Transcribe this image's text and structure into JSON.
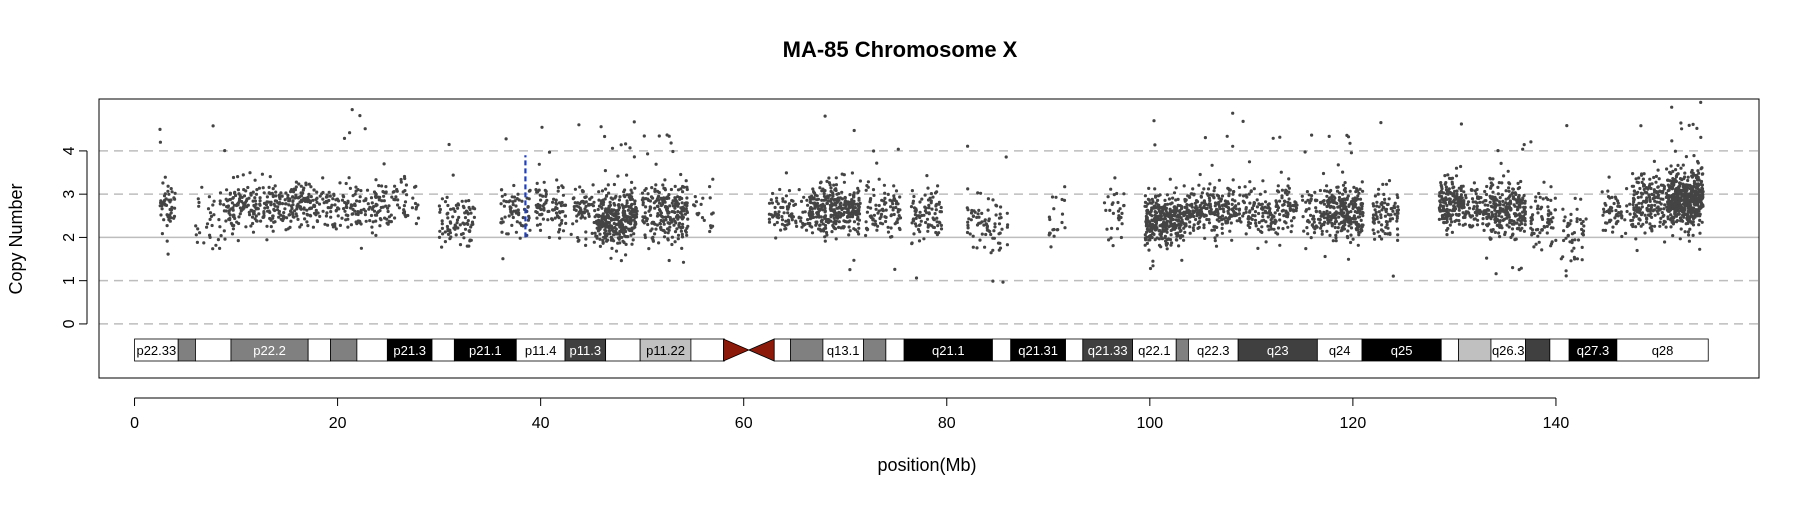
{
  "chart_data": {
    "type": "scatter",
    "title": "MA-85  Chromosome X",
    "xlabel": "position(Mb)",
    "ylabel": "Copy Number",
    "xlim": [
      -3.5,
      160
    ],
    "ylim": [
      -1.25,
      5.2
    ],
    "x_ticks": [
      "0",
      "20",
      "40",
      "60",
      "80",
      "100",
      "120",
      "140"
    ],
    "y_ticks": [
      "0",
      "1",
      "2",
      "3",
      "4"
    ],
    "dashed_gridlines_y": [
      0,
      1,
      3,
      4
    ],
    "solid_gridline_y": 2,
    "point_color": "#444444",
    "highlight_color": "#1f3fbf",
    "highlight_segment": {
      "x": 38.5,
      "y_from": 2.0,
      "y_to": 3.9
    },
    "centromere": {
      "from": 58.0,
      "to": 63.0,
      "color": "#8b1a0a"
    },
    "point_clusters": [
      {
        "from": 2.5,
        "to": 4.0,
        "n": 50,
        "center": 2.7,
        "spread": 0.55
      },
      {
        "from": 6.0,
        "to": 9.0,
        "n": 40,
        "center": 2.5,
        "spread": 0.6
      },
      {
        "from": 9.0,
        "to": 19.0,
        "n": 330,
        "center": 2.75,
        "spread": 0.55
      },
      {
        "from": 19.0,
        "to": 24.5,
        "n": 140,
        "center": 2.7,
        "spread": 0.55
      },
      {
        "from": 24.5,
        "to": 28.0,
        "n": 60,
        "center": 2.8,
        "spread": 0.5
      },
      {
        "from": 30.0,
        "to": 33.5,
        "n": 90,
        "center": 2.4,
        "spread": 0.55
      },
      {
        "from": 36.0,
        "to": 39.0,
        "n": 70,
        "center": 2.6,
        "spread": 0.6
      },
      {
        "from": 39.5,
        "to": 42.5,
        "n": 90,
        "center": 2.75,
        "spread": 0.55
      },
      {
        "from": 43.0,
        "to": 45.5,
        "n": 70,
        "center": 2.6,
        "spread": 0.6
      },
      {
        "from": 45.5,
        "to": 49.5,
        "n": 330,
        "center": 2.45,
        "spread": 0.6
      },
      {
        "from": 50.0,
        "to": 54.5,
        "n": 240,
        "center": 2.6,
        "spread": 0.6
      },
      {
        "from": 55.0,
        "to": 57.0,
        "n": 20,
        "center": 2.6,
        "spread": 0.6
      },
      {
        "from": 62.5,
        "to": 66.5,
        "n": 90,
        "center": 2.6,
        "spread": 0.5
      },
      {
        "from": 66.5,
        "to": 71.5,
        "n": 330,
        "center": 2.65,
        "spread": 0.55
      },
      {
        "from": 72.0,
        "to": 75.5,
        "n": 100,
        "center": 2.6,
        "spread": 0.5
      },
      {
        "from": 76.5,
        "to": 79.5,
        "n": 90,
        "center": 2.5,
        "spread": 0.55
      },
      {
        "from": 82.0,
        "to": 86.0,
        "n": 80,
        "center": 2.3,
        "spread": 0.6
      },
      {
        "from": 90.0,
        "to": 92.0,
        "n": 20,
        "center": 2.4,
        "spread": 0.6
      },
      {
        "from": 95.5,
        "to": 97.5,
        "n": 30,
        "center": 2.5,
        "spread": 0.6
      },
      {
        "from": 99.5,
        "to": 103.5,
        "n": 320,
        "center": 2.4,
        "spread": 0.5
      },
      {
        "from": 103.5,
        "to": 108.5,
        "n": 230,
        "center": 2.7,
        "spread": 0.55
      },
      {
        "from": 108.5,
        "to": 114.5,
        "n": 190,
        "center": 2.6,
        "spread": 0.55
      },
      {
        "from": 115.0,
        "to": 117.5,
        "n": 80,
        "center": 2.6,
        "spread": 0.5
      },
      {
        "from": 117.5,
        "to": 121.0,
        "n": 250,
        "center": 2.6,
        "spread": 0.55
      },
      {
        "from": 122.0,
        "to": 124.5,
        "n": 90,
        "center": 2.5,
        "spread": 0.55
      },
      {
        "from": 128.5,
        "to": 131.0,
        "n": 180,
        "center": 2.8,
        "spread": 0.55
      },
      {
        "from": 131.0,
        "to": 133.5,
        "n": 90,
        "center": 2.7,
        "spread": 0.5
      },
      {
        "from": 133.5,
        "to": 137.0,
        "n": 230,
        "center": 2.6,
        "spread": 0.55
      },
      {
        "from": 137.5,
        "to": 140.0,
        "n": 70,
        "center": 2.4,
        "spread": 0.6
      },
      {
        "from": 140.5,
        "to": 143.0,
        "n": 50,
        "center": 2.2,
        "spread": 0.6
      },
      {
        "from": 144.5,
        "to": 147.5,
        "n": 60,
        "center": 2.6,
        "spread": 0.55
      },
      {
        "from": 147.5,
        "to": 151.0,
        "n": 180,
        "center": 2.8,
        "spread": 0.6
      },
      {
        "from": 151.0,
        "to": 154.5,
        "n": 500,
        "center": 2.9,
        "spread": 0.6
      }
    ],
    "ideogram_bands": [
      {
        "label": "p22.33",
        "from": 0.0,
        "to": 4.3,
        "fill": "#ffffff",
        "text": "#000000"
      },
      {
        "label": "",
        "from": 4.3,
        "to": 6.0,
        "fill": "#808080",
        "text": "#000000"
      },
      {
        "label": "",
        "from": 6.0,
        "to": 9.5,
        "fill": "#ffffff",
        "text": "#000000"
      },
      {
        "label": "p22.2",
        "from": 9.5,
        "to": 17.1,
        "fill": "#808080",
        "text": "#ffffff"
      },
      {
        "label": "",
        "from": 17.1,
        "to": 19.3,
        "fill": "#ffffff",
        "text": "#000000"
      },
      {
        "label": "",
        "from": 19.3,
        "to": 21.9,
        "fill": "#808080",
        "text": "#000000"
      },
      {
        "label": "",
        "from": 21.9,
        "to": 24.9,
        "fill": "#ffffff",
        "text": "#000000"
      },
      {
        "label": "p21.3",
        "from": 24.9,
        "to": 29.3,
        "fill": "#000000",
        "text": "#ffffff"
      },
      {
        "label": "",
        "from": 29.3,
        "to": 31.5,
        "fill": "#ffffff",
        "text": "#000000"
      },
      {
        "label": "p21.1",
        "from": 31.5,
        "to": 37.6,
        "fill": "#000000",
        "text": "#ffffff"
      },
      {
        "label": "p11.4",
        "from": 37.6,
        "to": 42.4,
        "fill": "#ffffff",
        "text": "#000000"
      },
      {
        "label": "p11.3",
        "from": 42.4,
        "to": 46.4,
        "fill": "#404040",
        "text": "#ffffff"
      },
      {
        "label": "",
        "from": 46.4,
        "to": 49.8,
        "fill": "#ffffff",
        "text": "#000000"
      },
      {
        "label": "p11.22",
        "from": 49.8,
        "to": 54.8,
        "fill": "#c0c0c0",
        "text": "#000000"
      },
      {
        "label": "",
        "from": 54.8,
        "to": 58.1,
        "fill": "#ffffff",
        "text": "#000000"
      },
      {
        "label": "",
        "from": 63.0,
        "to": 64.6,
        "fill": "#ffffff",
        "text": "#000000"
      },
      {
        "label": "",
        "from": 64.6,
        "to": 67.8,
        "fill": "#808080",
        "text": "#000000"
      },
      {
        "label": "q13.1",
        "from": 67.8,
        "to": 71.8,
        "fill": "#ffffff",
        "text": "#000000"
      },
      {
        "label": "",
        "from": 71.8,
        "to": 74.0,
        "fill": "#808080",
        "text": "#000000"
      },
      {
        "label": "",
        "from": 74.0,
        "to": 75.8,
        "fill": "#ffffff",
        "text": "#000000"
      },
      {
        "label": "q21.1",
        "from": 75.8,
        "to": 84.5,
        "fill": "#000000",
        "text": "#ffffff"
      },
      {
        "label": "",
        "from": 84.5,
        "to": 86.3,
        "fill": "#ffffff",
        "text": "#000000"
      },
      {
        "label": "q21.31",
        "from": 86.3,
        "to": 91.7,
        "fill": "#000000",
        "text": "#ffffff"
      },
      {
        "label": "",
        "from": 91.7,
        "to": 93.4,
        "fill": "#ffffff",
        "text": "#000000"
      },
      {
        "label": "q21.33",
        "from": 93.4,
        "to": 98.3,
        "fill": "#404040",
        "text": "#ffffff"
      },
      {
        "label": "q22.1",
        "from": 98.3,
        "to": 102.6,
        "fill": "#ffffff",
        "text": "#000000"
      },
      {
        "label": "",
        "from": 102.6,
        "to": 103.8,
        "fill": "#808080",
        "text": "#000000"
      },
      {
        "label": "q22.3",
        "from": 103.8,
        "to": 108.7,
        "fill": "#ffffff",
        "text": "#000000"
      },
      {
        "label": "q23",
        "from": 108.7,
        "to": 116.5,
        "fill": "#404040",
        "text": "#ffffff"
      },
      {
        "label": "q24",
        "from": 116.5,
        "to": 120.9,
        "fill": "#ffffff",
        "text": "#000000"
      },
      {
        "label": "q25",
        "from": 120.9,
        "to": 128.7,
        "fill": "#000000",
        "text": "#ffffff"
      },
      {
        "label": "",
        "from": 128.7,
        "to": 130.4,
        "fill": "#ffffff",
        "text": "#000000"
      },
      {
        "label": "",
        "from": 130.4,
        "to": 133.6,
        "fill": "#c0c0c0",
        "text": "#000000"
      },
      {
        "label": "q26.3",
        "from": 133.6,
        "to": 137.0,
        "fill": "#ffffff",
        "text": "#000000"
      },
      {
        "label": "",
        "from": 137.0,
        "to": 139.4,
        "fill": "#404040",
        "text": "#000000"
      },
      {
        "label": "",
        "from": 139.4,
        "to": 141.3,
        "fill": "#ffffff",
        "text": "#000000"
      },
      {
        "label": "q27.3",
        "from": 141.3,
        "to": 146.0,
        "fill": "#000000",
        "text": "#ffffff"
      },
      {
        "label": "q28",
        "from": 146.0,
        "to": 155.0,
        "fill": "#ffffff",
        "text": "#000000"
      }
    ]
  }
}
